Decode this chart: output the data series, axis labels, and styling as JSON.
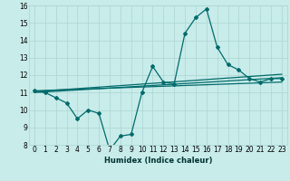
{
  "xlabel": "Humidex (Indice chaleur)",
  "background_color": "#c8ecea",
  "grid_color": "#b0d8d5",
  "line_color": "#006b6b",
  "xlim": [
    -0.5,
    23.5
  ],
  "ylim": [
    8,
    16
  ],
  "yticks": [
    8,
    9,
    10,
    11,
    12,
    13,
    14,
    15,
    16
  ],
  "xticks": [
    0,
    1,
    2,
    3,
    4,
    5,
    6,
    7,
    8,
    9,
    10,
    11,
    12,
    13,
    14,
    15,
    16,
    17,
    18,
    19,
    20,
    21,
    22,
    23
  ],
  "main_series_x": [
    0,
    1,
    2,
    3,
    4,
    5,
    6,
    7,
    8,
    9,
    10,
    11,
    12,
    13,
    14,
    15,
    16,
    17,
    18,
    19,
    20,
    21,
    22,
    23
  ],
  "main_series_y": [
    11.1,
    11.0,
    10.7,
    10.4,
    9.5,
    10.0,
    9.8,
    7.7,
    8.5,
    8.6,
    11.0,
    12.5,
    11.6,
    11.5,
    14.4,
    15.3,
    15.8,
    13.6,
    12.6,
    12.3,
    11.8,
    11.6,
    11.8,
    11.8
  ],
  "trend1_x": [
    0,
    23
  ],
  "trend1_y": [
    11.05,
    12.05
  ],
  "trend2_x": [
    0,
    23
  ],
  "trend2_y": [
    11.1,
    11.6
  ],
  "trend3_x": [
    0,
    23
  ],
  "trend3_y": [
    11.0,
    11.85
  ],
  "xlabel_fontsize": 6,
  "tick_fontsize": 5.5
}
